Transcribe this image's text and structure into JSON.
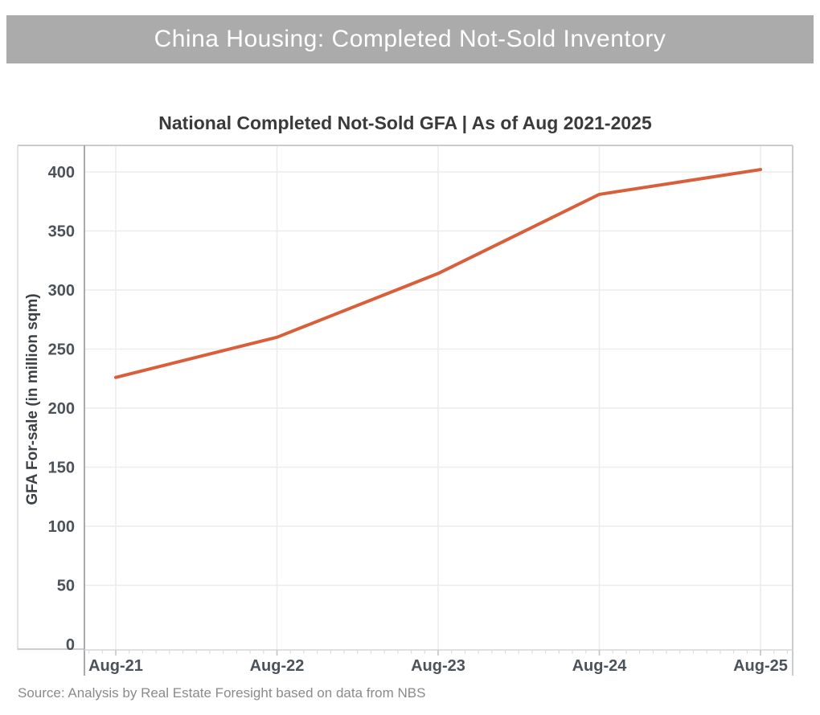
{
  "banner": {
    "title": "China Housing: Completed Not-Sold Inventory",
    "bg_color": "#ABABAB",
    "text_color": "#FFFFFF"
  },
  "chart_data": {
    "type": "line",
    "title": "National Completed Not-Sold GFA | As of Aug 2021-2025",
    "categories": [
      "Aug-21",
      "Aug-22",
      "Aug-23",
      "Aug-24",
      "Aug-25"
    ],
    "series": [
      {
        "name": "National Completed Not-Sold GFA",
        "values": [
          226,
          260,
          314,
          381,
          402
        ]
      }
    ],
    "xlabel": "",
    "ylabel": "GFA For-sale (in million sqm)",
    "ylim": [
      0,
      420
    ],
    "yticks": [
      0,
      50,
      100,
      150,
      200,
      250,
      300,
      350,
      400
    ],
    "grid": true,
    "legend_position": "none",
    "line_color": "#D85F3A",
    "gridline_color": "#ECECEC",
    "axis_label_color": "#4B525A",
    "frame_color": "#C9CBCD"
  },
  "source_note": "Source: Analysis by Real Estate Foresight based on data from NBS"
}
